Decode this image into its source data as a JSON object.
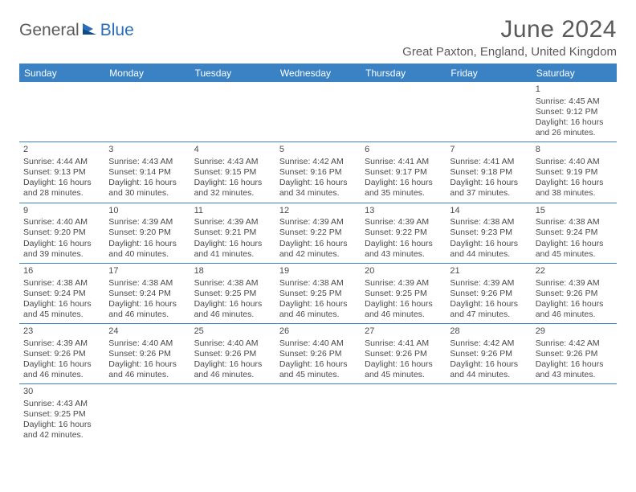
{
  "logo": {
    "part1": "General",
    "part2": "Blue"
  },
  "title": "June 2024",
  "location": "Great Paxton, England, United Kingdom",
  "colors": {
    "header_bg": "#3b82c4",
    "header_fg": "#ffffff",
    "rule": "#3b82c4",
    "text": "#4a4a4a",
    "logo_blue": "#2a6db8"
  },
  "weekdays": [
    "Sunday",
    "Monday",
    "Tuesday",
    "Wednesday",
    "Thursday",
    "Friday",
    "Saturday"
  ],
  "weeks": [
    [
      null,
      null,
      null,
      null,
      null,
      null,
      {
        "d": "1",
        "sr": "4:45 AM",
        "ss": "9:12 PM",
        "dl1": "16 hours",
        "dl2": "and 26 minutes."
      }
    ],
    [
      {
        "d": "2",
        "sr": "4:44 AM",
        "ss": "9:13 PM",
        "dl1": "16 hours",
        "dl2": "and 28 minutes."
      },
      {
        "d": "3",
        "sr": "4:43 AM",
        "ss": "9:14 PM",
        "dl1": "16 hours",
        "dl2": "and 30 minutes."
      },
      {
        "d": "4",
        "sr": "4:43 AM",
        "ss": "9:15 PM",
        "dl1": "16 hours",
        "dl2": "and 32 minutes."
      },
      {
        "d": "5",
        "sr": "4:42 AM",
        "ss": "9:16 PM",
        "dl1": "16 hours",
        "dl2": "and 34 minutes."
      },
      {
        "d": "6",
        "sr": "4:41 AM",
        "ss": "9:17 PM",
        "dl1": "16 hours",
        "dl2": "and 35 minutes."
      },
      {
        "d": "7",
        "sr": "4:41 AM",
        "ss": "9:18 PM",
        "dl1": "16 hours",
        "dl2": "and 37 minutes."
      },
      {
        "d": "8",
        "sr": "4:40 AM",
        "ss": "9:19 PM",
        "dl1": "16 hours",
        "dl2": "and 38 minutes."
      }
    ],
    [
      {
        "d": "9",
        "sr": "4:40 AM",
        "ss": "9:20 PM",
        "dl1": "16 hours",
        "dl2": "and 39 minutes."
      },
      {
        "d": "10",
        "sr": "4:39 AM",
        "ss": "9:20 PM",
        "dl1": "16 hours",
        "dl2": "and 40 minutes."
      },
      {
        "d": "11",
        "sr": "4:39 AM",
        "ss": "9:21 PM",
        "dl1": "16 hours",
        "dl2": "and 41 minutes."
      },
      {
        "d": "12",
        "sr": "4:39 AM",
        "ss": "9:22 PM",
        "dl1": "16 hours",
        "dl2": "and 42 minutes."
      },
      {
        "d": "13",
        "sr": "4:39 AM",
        "ss": "9:22 PM",
        "dl1": "16 hours",
        "dl2": "and 43 minutes."
      },
      {
        "d": "14",
        "sr": "4:38 AM",
        "ss": "9:23 PM",
        "dl1": "16 hours",
        "dl2": "and 44 minutes."
      },
      {
        "d": "15",
        "sr": "4:38 AM",
        "ss": "9:24 PM",
        "dl1": "16 hours",
        "dl2": "and 45 minutes."
      }
    ],
    [
      {
        "d": "16",
        "sr": "4:38 AM",
        "ss": "9:24 PM",
        "dl1": "16 hours",
        "dl2": "and 45 minutes."
      },
      {
        "d": "17",
        "sr": "4:38 AM",
        "ss": "9:24 PM",
        "dl1": "16 hours",
        "dl2": "and 46 minutes."
      },
      {
        "d": "18",
        "sr": "4:38 AM",
        "ss": "9:25 PM",
        "dl1": "16 hours",
        "dl2": "and 46 minutes."
      },
      {
        "d": "19",
        "sr": "4:38 AM",
        "ss": "9:25 PM",
        "dl1": "16 hours",
        "dl2": "and 46 minutes."
      },
      {
        "d": "20",
        "sr": "4:39 AM",
        "ss": "9:25 PM",
        "dl1": "16 hours",
        "dl2": "and 46 minutes."
      },
      {
        "d": "21",
        "sr": "4:39 AM",
        "ss": "9:26 PM",
        "dl1": "16 hours",
        "dl2": "and 47 minutes."
      },
      {
        "d": "22",
        "sr": "4:39 AM",
        "ss": "9:26 PM",
        "dl1": "16 hours",
        "dl2": "and 46 minutes."
      }
    ],
    [
      {
        "d": "23",
        "sr": "4:39 AM",
        "ss": "9:26 PM",
        "dl1": "16 hours",
        "dl2": "and 46 minutes."
      },
      {
        "d": "24",
        "sr": "4:40 AM",
        "ss": "9:26 PM",
        "dl1": "16 hours",
        "dl2": "and 46 minutes."
      },
      {
        "d": "25",
        "sr": "4:40 AM",
        "ss": "9:26 PM",
        "dl1": "16 hours",
        "dl2": "and 46 minutes."
      },
      {
        "d": "26",
        "sr": "4:40 AM",
        "ss": "9:26 PM",
        "dl1": "16 hours",
        "dl2": "and 45 minutes."
      },
      {
        "d": "27",
        "sr": "4:41 AM",
        "ss": "9:26 PM",
        "dl1": "16 hours",
        "dl2": "and 45 minutes."
      },
      {
        "d": "28",
        "sr": "4:42 AM",
        "ss": "9:26 PM",
        "dl1": "16 hours",
        "dl2": "and 44 minutes."
      },
      {
        "d": "29",
        "sr": "4:42 AM",
        "ss": "9:26 PM",
        "dl1": "16 hours",
        "dl2": "and 43 minutes."
      }
    ],
    [
      {
        "d": "30",
        "sr": "4:43 AM",
        "ss": "9:25 PM",
        "dl1": "16 hours",
        "dl2": "and 42 minutes."
      },
      null,
      null,
      null,
      null,
      null,
      null
    ]
  ],
  "labels": {
    "sunrise": "Sunrise:",
    "sunset": "Sunset:",
    "daylight": "Daylight:"
  }
}
